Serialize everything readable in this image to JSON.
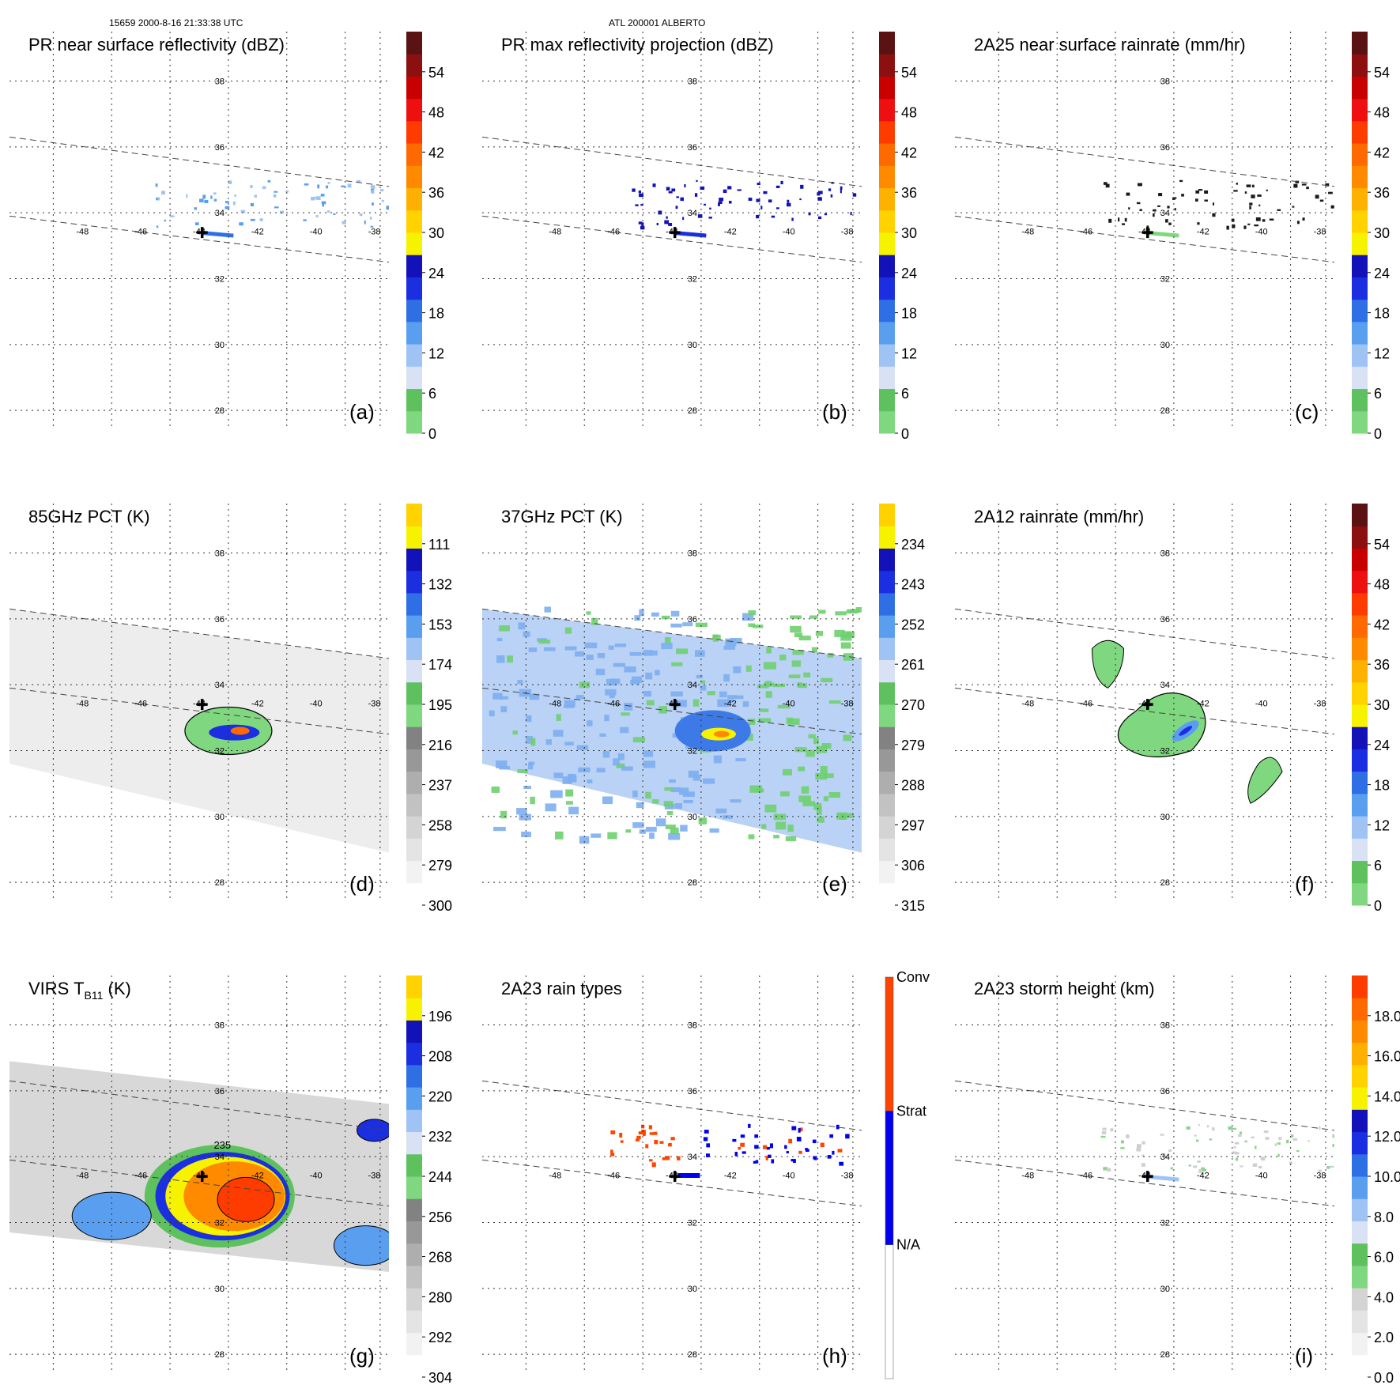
{
  "header": {
    "orbit_time": "15659 2000-8-16 21:33:38 UTC",
    "storm": "ATL 200001 ALBERTO"
  },
  "colors": {
    "cmap_bands": [
      "#7fd77f",
      "#5ec15e",
      "#d9e1f5",
      "#9fc3f5",
      "#5a9ef0",
      "#2f6fe6",
      "#1b2ee0",
      "#1212b8",
      "#f7f200",
      "#ffd200",
      "#ffb000",
      "#ff8a00",
      "#ff6a00",
      "#ff3c00",
      "#ee1010",
      "#c80000",
      "#8c1010",
      "#5a1212"
    ],
    "rain_types": {
      "na": "#ffffff",
      "strat": "#0000ee",
      "conv": "#ff4400"
    }
  },
  "chart_data": [
    {
      "type": "heatmap",
      "panel": "(a)",
      "title": "PR near surface reflectivity (dBZ)",
      "colorbar": {
        "ticks": [
          "0",
          "6",
          "12",
          "18",
          "24",
          "30",
          "36",
          "42",
          "48",
          "54"
        ]
      },
      "lon_ticks": [
        "-48",
        "-46",
        "-44",
        "-42",
        "-40",
        "-38"
      ],
      "lat_ticks": [
        "38",
        "36",
        "34",
        "32",
        "30",
        "28"
      ],
      "xlim": [
        -50.5,
        -37.5
      ],
      "ylim": [
        27.5,
        39.5
      ],
      "features": [
        {
          "label": "storm center",
          "lon": -43.9,
          "lat": 33.4
        }
      ]
    },
    {
      "type": "heatmap",
      "panel": "(b)",
      "title": "PR max reflectivity projection (dBZ)",
      "colorbar": {
        "ticks": [
          "0",
          "6",
          "12",
          "18",
          "24",
          "30",
          "36",
          "42",
          "48",
          "54"
        ]
      },
      "lon_ticks": [
        "-48",
        "-46",
        "-44",
        "-42",
        "-40",
        "-38"
      ],
      "lat_ticks": [
        "38",
        "36",
        "34",
        "32",
        "30",
        "28"
      ]
    },
    {
      "type": "heatmap",
      "panel": "(c)",
      "title": "2A25 near surface rainrate (mm/hr)",
      "colorbar": {
        "ticks": [
          "0",
          "6",
          "12",
          "18",
          "24",
          "30",
          "36",
          "42",
          "48",
          "54"
        ]
      },
      "lon_ticks": [
        "-48",
        "-46",
        "-44",
        "-42",
        "-40",
        "-38"
      ],
      "lat_ticks": [
        "38",
        "36",
        "34",
        "32",
        "30",
        "28"
      ]
    },
    {
      "type": "heatmap",
      "panel": "(d)",
      "title": "85GHz PCT (K)",
      "colorbar": {
        "ticks": [
          "300",
          "279",
          "258",
          "237",
          "216",
          "195",
          "174",
          "153",
          "132",
          "111"
        ]
      },
      "lon_ticks": [
        "-48",
        "-46",
        "-44",
        "-42",
        "-40",
        "-38"
      ],
      "lat_ticks": [
        "38",
        "36",
        "34",
        "32",
        "30",
        "28"
      ]
    },
    {
      "type": "heatmap",
      "panel": "(e)",
      "title": "37GHz PCT (K)",
      "colorbar": {
        "ticks": [
          "315",
          "306",
          "297",
          "288",
          "279",
          "270",
          "261",
          "252",
          "243",
          "234"
        ]
      },
      "lon_ticks": [
        "-48",
        "-46",
        "-44",
        "-42",
        "-40",
        "-38"
      ],
      "lat_ticks": [
        "38",
        "36",
        "34",
        "32",
        "30",
        "28"
      ]
    },
    {
      "type": "heatmap",
      "panel": "(f)",
      "title": "2A12 rainrate (mm/hr)",
      "colorbar": {
        "ticks": [
          "0",
          "6",
          "12",
          "18",
          "24",
          "30",
          "36",
          "42",
          "48",
          "54"
        ]
      },
      "lon_ticks": [
        "-48",
        "-46",
        "-44",
        "-42",
        "-40",
        "-38"
      ],
      "lat_ticks": [
        "38",
        "36",
        "34",
        "32",
        "30",
        "28"
      ]
    },
    {
      "type": "heatmap",
      "panel": "(g)",
      "title_main": "VIRS T",
      "title_sub": "B11",
      "title_unit": " (K)",
      "colorbar": {
        "ticks": [
          "304",
          "292",
          "280",
          "268",
          "256",
          "244",
          "232",
          "220",
          "208",
          "196"
        ]
      },
      "lon_ticks": [
        "-48",
        "-46",
        "-44",
        "-42",
        "-40",
        "-38"
      ],
      "lat_ticks": [
        "38",
        "36",
        "34",
        "32",
        "30",
        "28"
      ],
      "annotation": "235"
    },
    {
      "type": "heatmap",
      "panel": "(h)",
      "title": "2A23 rain types",
      "colorbar": {
        "categories": [
          "N/A",
          "Strat",
          "Conv"
        ]
      },
      "lon_ticks": [
        "-48",
        "-46",
        "-44",
        "-42",
        "-40",
        "-38"
      ],
      "lat_ticks": [
        "38",
        "36",
        "34",
        "32",
        "30",
        "28"
      ]
    },
    {
      "type": "heatmap",
      "panel": "(i)",
      "title": "2A23 storm height (km)",
      "colorbar": {
        "ticks": [
          "0.0",
          "2.0",
          "4.0",
          "6.0",
          "8.0",
          "10.0",
          "12.0",
          "14.0",
          "16.0",
          "18.0"
        ]
      },
      "lon_ticks": [
        "-48",
        "-46",
        "-44",
        "-42",
        "-40",
        "-38"
      ],
      "lat_ticks": [
        "38",
        "36",
        "34",
        "32",
        "30",
        "28"
      ]
    }
  ]
}
